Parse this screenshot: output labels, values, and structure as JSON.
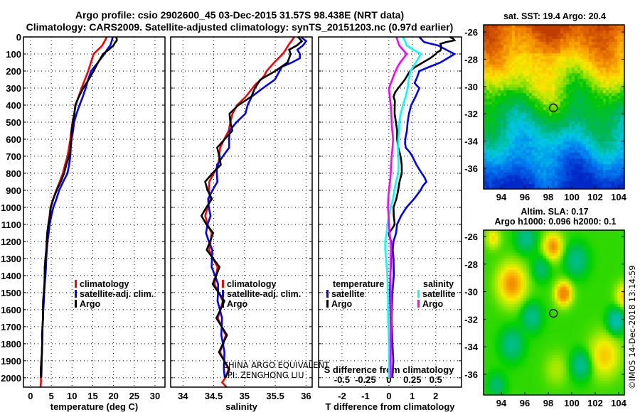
{
  "title": {
    "line1": "Argo profile: csio 2902600_45 03-Dec-2015 31.57S 98.438E (NRT data)",
    "line2": "Climatology: CARS2009. Satellite-adjusted climatology: synTS_20151203.nc (0.97d earlier)"
  },
  "credits": {
    "line1": "CHINA ARGO EQUIVALENT",
    "line2": "PI: ZENGHONG LIU",
    "timestamp": "©IMOS 14-Dec-2018 13:14:59"
  },
  "colors": {
    "climatology": "#ff0000",
    "satellite": "#0000ff",
    "argo": "#000000",
    "s_satellite": "#00ffff",
    "s_argo": "#ff00ff"
  },
  "chart_data": [
    {
      "type": "line",
      "panel": "temperature",
      "xlabel": "temperature (deg C)",
      "ylabel": "depth",
      "xlim": [
        -1.7,
        32.4
      ],
      "ylim": [
        2055,
        0
      ],
      "xticks": [
        "0",
        "5",
        "10",
        "15",
        "20",
        "25",
        "30"
      ],
      "xtick_values": [
        0,
        5,
        10,
        15,
        20,
        25,
        30
      ],
      "yticks": [
        "0",
        "100",
        "200",
        "300",
        "400",
        "500",
        "600",
        "700",
        "800",
        "900",
        "1000",
        "1100",
        "1200",
        "1300",
        "1400",
        "1500",
        "1600",
        "1700",
        "1800",
        "1900",
        "2000"
      ],
      "legend": [
        "climatology",
        "satellite-adj. clim.",
        "Argo"
      ],
      "series": [
        {
          "name": "climatology",
          "color_key": "climatology",
          "depth": [
            0,
            50,
            100,
            200,
            300,
            400,
            500,
            600,
            700,
            800,
            900,
            1000,
            1100,
            1200,
            1300,
            1400,
            1500,
            1600,
            1700,
            1800,
            1900,
            2000,
            2055
          ],
          "values": [
            18.4,
            17.3,
            15.2,
            13.9,
            12.3,
            10.9,
            10.1,
            9.6,
            8.9,
            7.8,
            6.2,
            4.8,
            4.3,
            3.9,
            3.6,
            3.4,
            3.2,
            3.0,
            2.9,
            2.8,
            2.6,
            2.5,
            2.4
          ]
        },
        {
          "name": "satellite-adj. clim.",
          "color_key": "satellite",
          "depth": [
            0,
            50,
            100,
            200,
            300,
            400,
            500,
            600,
            700,
            800,
            900,
            1000,
            1100,
            1200,
            1300,
            1400,
            1500,
            1600,
            1700,
            1800,
            1900,
            2000
          ],
          "values": [
            19.8,
            19.2,
            17.8,
            14.6,
            13.3,
            11.8,
            10.5,
            9.9,
            9.6,
            8.9,
            6.9,
            5.5,
            4.6,
            4.1,
            3.8,
            3.6,
            3.3,
            3.1,
            2.9,
            2.8,
            2.7,
            2.6
          ]
        },
        {
          "name": "Argo",
          "color_key": "argo",
          "depth": [
            0,
            20,
            50,
            100,
            200,
            300,
            400,
            500,
            600,
            700,
            800,
            900,
            1000,
            1100,
            1200,
            1300,
            1400,
            1500,
            1600,
            1700,
            1800,
            1900,
            2000
          ],
          "values": [
            20.6,
            20.8,
            20.0,
            17.5,
            15.2,
            12.7,
            10.8,
            10.2,
            9.8,
            9.3,
            8.1,
            6.3,
            4.9,
            4.3,
            3.9,
            3.6,
            3.4,
            3.2,
            3.0,
            2.9,
            2.8,
            2.6,
            2.5
          ]
        }
      ]
    },
    {
      "type": "line",
      "panel": "salinity",
      "xlabel": "salinity",
      "xlim": [
        33.8,
        36.1
      ],
      "ylim": [
        2055,
        0
      ],
      "xticks": [
        "34",
        "34.5",
        "35",
        "35.5",
        "36"
      ],
      "xtick_values": [
        34,
        34.5,
        35,
        35.5,
        36
      ],
      "legend": [
        "climatology",
        "satellite-adj. clim.",
        "Argo"
      ],
      "series": [
        {
          "name": "climatology",
          "color_key": "climatology",
          "depth": [
            0,
            50,
            100,
            200,
            250,
            300,
            400,
            500,
            600,
            700,
            800,
            900,
            1000,
            1100,
            1200,
            1300,
            1400,
            1500,
            1600,
            1700,
            1800,
            1900,
            2000,
            2055
          ],
          "values": [
            35.81,
            35.71,
            35.62,
            35.36,
            35.27,
            35.13,
            34.88,
            34.77,
            34.67,
            34.59,
            34.5,
            34.42,
            34.4,
            34.4,
            34.45,
            34.49,
            34.54,
            34.58,
            34.61,
            34.63,
            34.65,
            34.67,
            34.69,
            34.71
          ]
        },
        {
          "name": "satellite-adj. clim.",
          "color_key": "satellite",
          "depth": [
            0,
            50,
            100,
            150,
            200,
            300,
            400,
            500,
            600,
            700,
            800,
            900,
            1000,
            1100,
            1200,
            1300,
            1400,
            1500,
            1600,
            1700,
            1800,
            1900,
            2000
          ],
          "values": [
            35.92,
            35.95,
            35.9,
            35.77,
            35.57,
            35.3,
            35.05,
            34.87,
            34.75,
            34.65,
            34.55,
            34.48,
            34.42,
            34.4,
            34.42,
            34.47,
            34.52,
            34.57,
            34.6,
            34.63,
            34.65,
            34.67,
            34.68
          ]
        },
        {
          "name": "Argo",
          "color_key": "argo",
          "depth": [
            0,
            50,
            100,
            200,
            300,
            400,
            500,
            600,
            700,
            800,
            900,
            1000,
            1100,
            1200,
            1300,
            1400,
            1500,
            1600,
            1700,
            1800,
            1900,
            2000
          ],
          "values": [
            35.87,
            35.85,
            35.75,
            35.5,
            35.17,
            34.9,
            34.77,
            34.68,
            34.59,
            34.48,
            34.4,
            34.38,
            34.38,
            34.44,
            34.49,
            34.54,
            34.58,
            34.61,
            34.63,
            34.65,
            34.67,
            34.69
          ]
        }
      ]
    },
    {
      "type": "line",
      "panel": "difference",
      "xlabel": "T difference from climatology",
      "x2label": "S difference from climatology",
      "xlim": [
        -3,
        3.1
      ],
      "s_scale": 0.25,
      "ylim": [
        2055,
        0
      ],
      "xticks": [
        "-2",
        "-1",
        "0",
        "1",
        "2"
      ],
      "xtick_values": [
        -2,
        -1,
        0,
        1,
        2
      ],
      "s_xticks": [
        "-0.5",
        "-0.25",
        "0",
        "0.25",
        "0.5"
      ],
      "s_xtick_values": [
        -0.5,
        -0.25,
        0,
        0.25,
        0.5
      ],
      "legend_titles": {
        "temperature": "temperature",
        "salinity": "salinity"
      },
      "legend": {
        "t_satellite": "satellite",
        "t_argo": "Argo",
        "s_satellite": "satellite",
        "s_argo": "Argo"
      },
      "series": [
        {
          "name": "T satellite",
          "var": "T",
          "color_key": "satellite",
          "depth": [
            0,
            30,
            50,
            100,
            150,
            200,
            270,
            300,
            400,
            500,
            600,
            650,
            700,
            800,
            850,
            900,
            1000,
            1100,
            1200,
            1300,
            1500,
            1800,
            2000
          ],
          "values": [
            1.3,
            1.5,
            2.1,
            2.8,
            2.2,
            1.3,
            1.1,
            1.3,
            0.95,
            0.8,
            0.7,
            0.72,
            1.0,
            1.4,
            1.6,
            1.35,
            0.75,
            0.35,
            0.2,
            0.2,
            0.15,
            0.15,
            0.15
          ]
        },
        {
          "name": "T Argo",
          "var": "T",
          "color_key": "argo",
          "depth": [
            0,
            20,
            40,
            80,
            100,
            150,
            200,
            300,
            350,
            400,
            500,
            600,
            700,
            800,
            900,
            1000,
            1100,
            1150,
            1200,
            1300,
            1500,
            1800,
            2000
          ],
          "values": [
            2.6,
            2.8,
            2.2,
            2.2,
            2.0,
            1.45,
            0.9,
            0.4,
            0.2,
            0.25,
            0.3,
            0.35,
            0.5,
            0.55,
            0.4,
            0.2,
            0.25,
            0.0,
            0.1,
            0.1,
            0.05,
            0.08,
            0.08
          ]
        },
        {
          "name": "S satellite",
          "var": "S",
          "color_key": "s_satellite",
          "depth": [
            0,
            50,
            100,
            200,
            300,
            400,
            500,
            600,
            700,
            800,
            900,
            1000,
            1100,
            1200,
            1300,
            1500,
            1800,
            2000
          ],
          "values": [
            0.15,
            0.19,
            0.34,
            0.23,
            0.2,
            0.15,
            0.11,
            0.1,
            0.1,
            0.1,
            0.06,
            0.02,
            -0.015,
            -0.04,
            -0.03,
            -0.01,
            0.0,
            0.0
          ]
        },
        {
          "name": "S Argo",
          "var": "S",
          "color_key": "s_argo",
          "depth": [
            0,
            50,
            100,
            150,
            200,
            300,
            400,
            500,
            600,
            700,
            800,
            900,
            1000,
            1100,
            1200,
            1300,
            1500,
            1800,
            2000
          ],
          "values": [
            0.08,
            0.11,
            0.19,
            0.12,
            0.07,
            0.0,
            0.02,
            0.03,
            0.045,
            0.03,
            0.02,
            0.0,
            -0.01,
            0.0,
            0.02,
            0.02,
            0.02,
            0.02,
            0.02
          ]
        }
      ]
    },
    {
      "type": "heatmap",
      "panel": "sst-map",
      "title": "sat. SST: 19.4 Argo: 20.4",
      "xticks": [
        "94",
        "96",
        "98",
        "100",
        "102",
        "104"
      ],
      "yticks": [
        "-26",
        "-28",
        "-30",
        "-32",
        "-34",
        "-36"
      ],
      "xlim": [
        92.5,
        104.5
      ],
      "ylim": [
        -37.5,
        -25.5
      ],
      "profile_location": {
        "lon": 98.438,
        "lat": -31.57
      }
    },
    {
      "type": "heatmap",
      "panel": "sla-map",
      "title1": "Altim. SLA: 0.17",
      "title2": "Argo h1000: 0.096 h2000: 0.1",
      "xticks": [
        "94",
        "96",
        "98",
        "100",
        "102",
        "104"
      ],
      "yticks": [
        "-26",
        "-28",
        "-30",
        "-32",
        "-34",
        "-36"
      ],
      "xlim": [
        92.5,
        104.5
      ],
      "ylim": [
        -37.6,
        -25.5
      ],
      "profile_location": {
        "lon": 98.438,
        "lat": -31.57
      }
    }
  ]
}
